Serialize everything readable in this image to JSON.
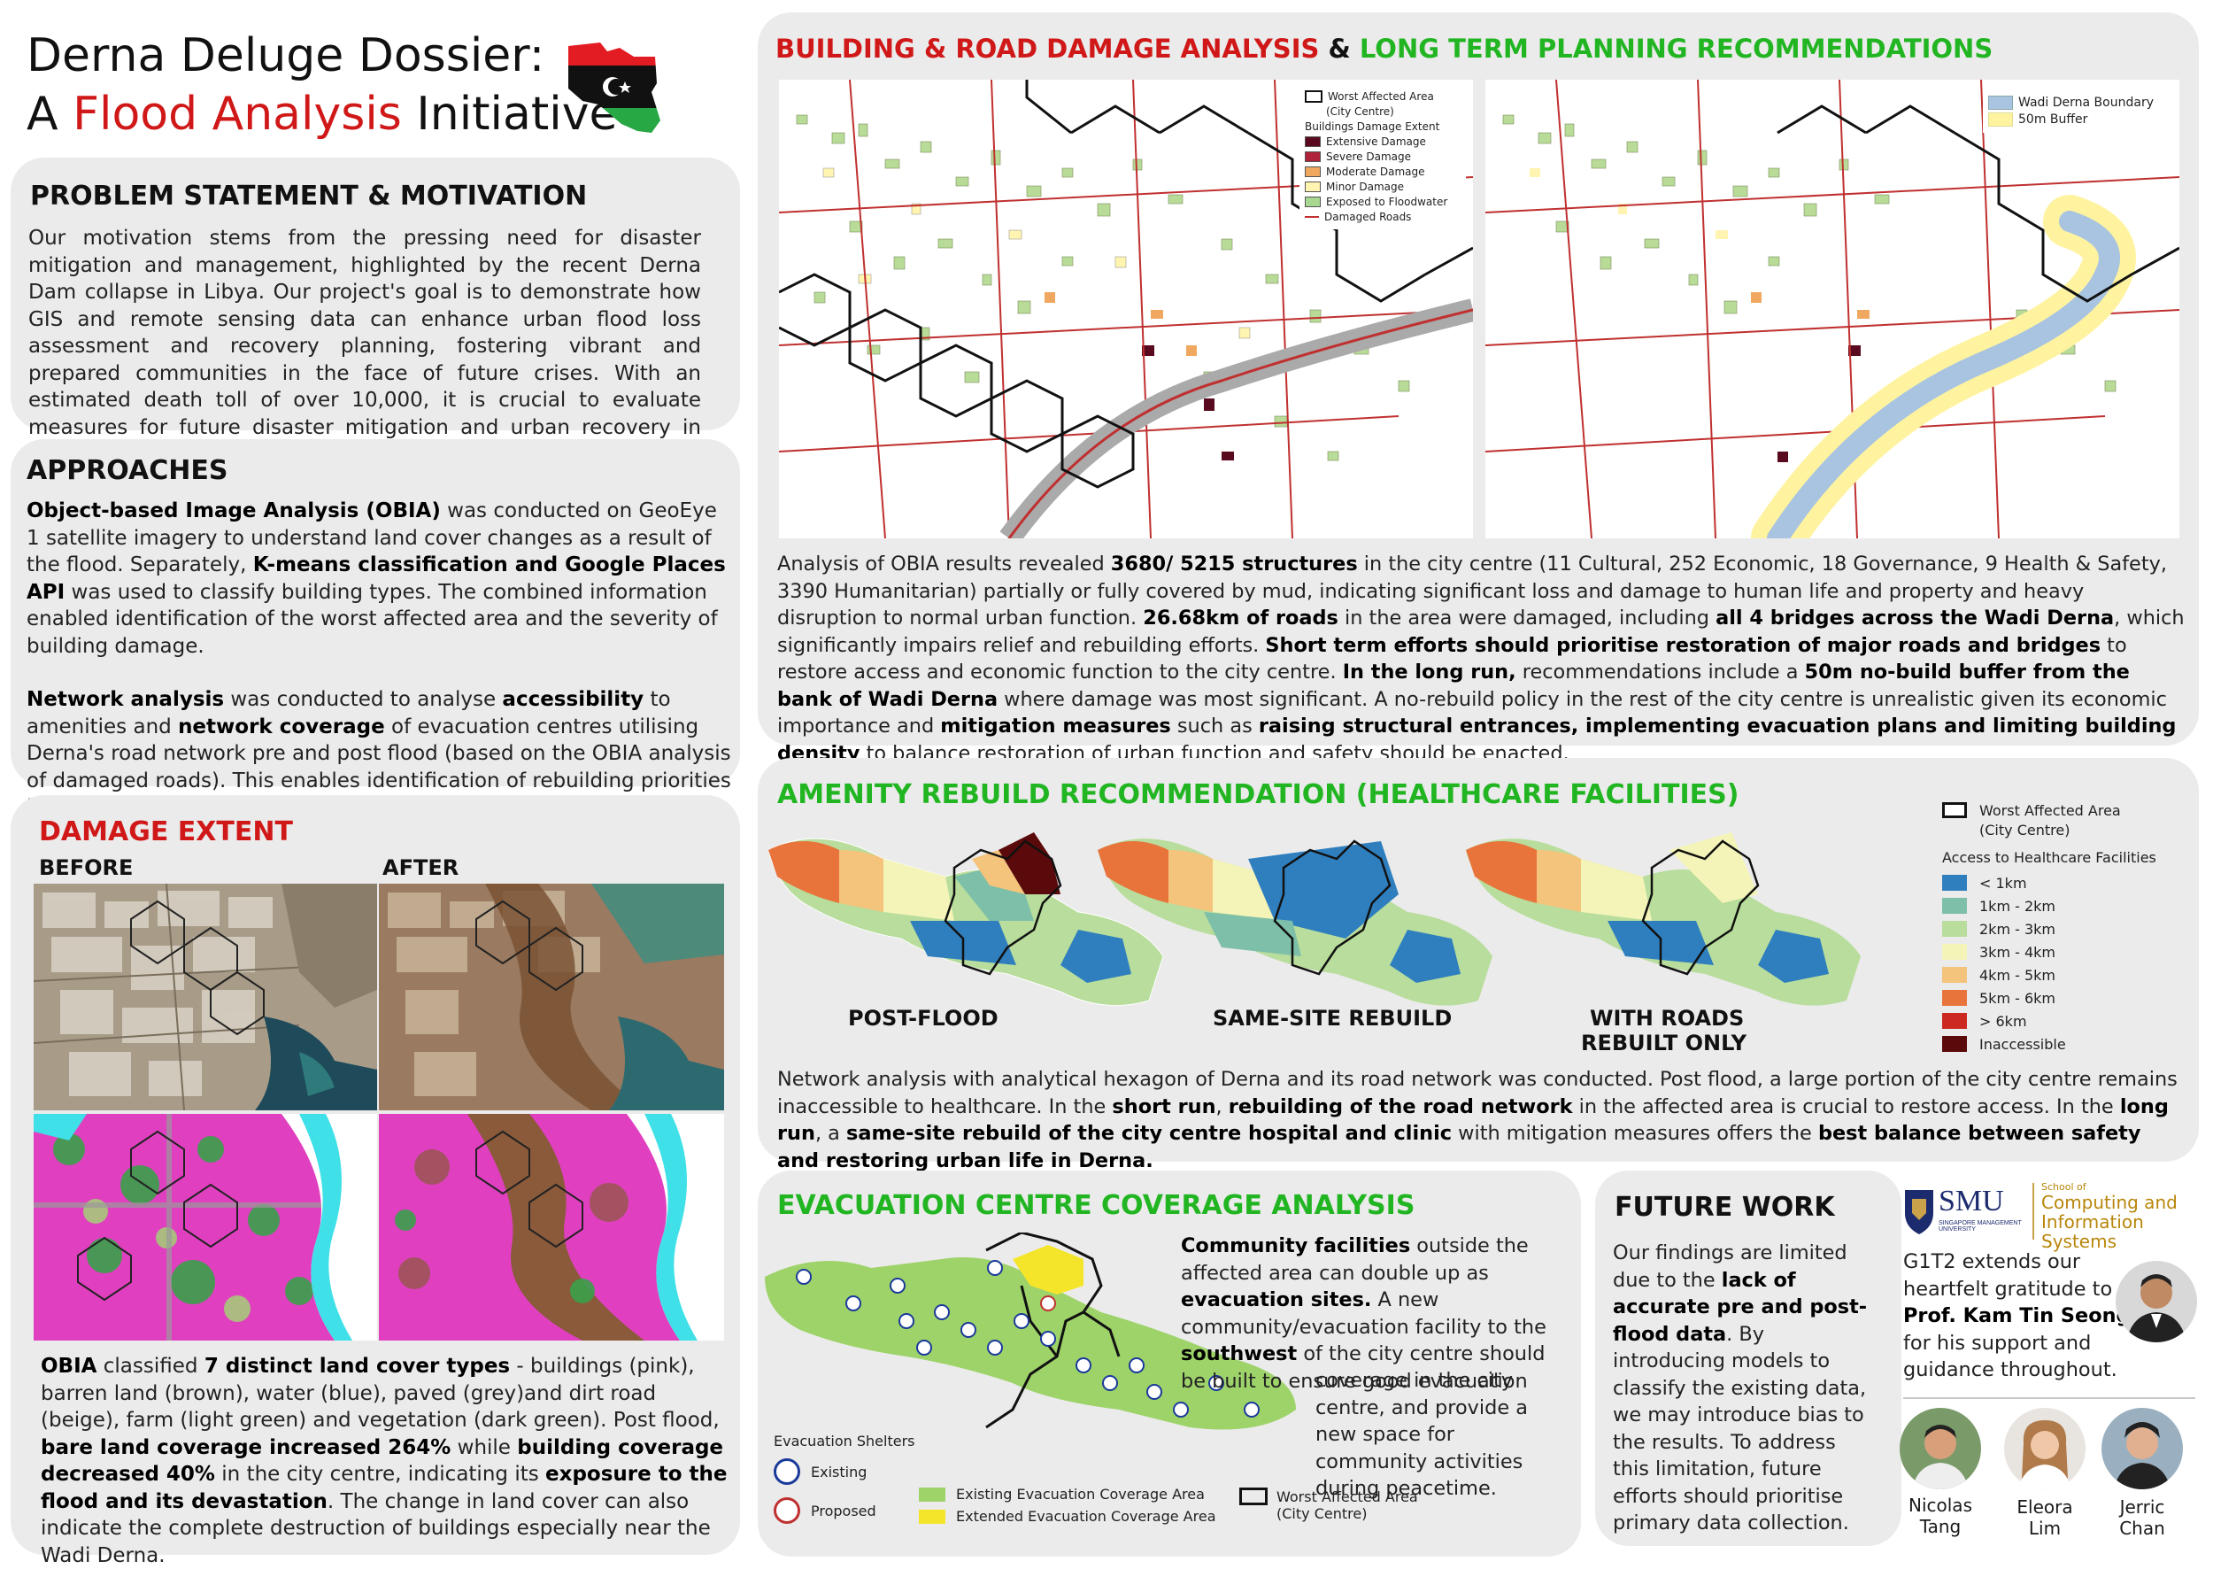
{
  "title": {
    "line1": "Derna Deluge Dossier:",
    "line2_a": "A ",
    "line2_b": "Flood Analysis",
    "line2_c": " Initiative",
    "accent": "#d01818"
  },
  "problem": {
    "heading": "PROBLEM STATEMENT & MOTIVATION",
    "text": "Our motivation stems from the pressing need for disaster mitigation and management, highlighted by the recent Derna Dam collapse in Libya. Our project's goal is to demonstrate how GIS and remote sensing data can enhance urban flood loss assessment and recovery planning, fostering vibrant and prepared communities in the face of future crises. With an estimated death toll of over 10,000, it is crucial to evaluate measures for future disaster mitigation and urban recovery in Libya."
  },
  "approaches": {
    "heading": "APPROACHES",
    "p1_b1": "Object-based Image Analysis (OBIA)",
    "p1_t1": " was conducted on GeoEye 1 satellite imagery to understand land cover changes as a result of the flood. Separately, ",
    "p1_b2": "K-means classification and Google Places API",
    "p1_t2": " was used to classify building types. The combined information enabled identification of the worst affected area and the severity of building damage.",
    "p2_b1": "Network analysis",
    "p2_t1": " was conducted to analyse ",
    "p2_b2": "accessibility",
    "p2_t2": " to amenities and ",
    "p2_b3": "network coverage",
    "p2_t3": " of evacuation centres utilising Derna's road network pre and post flood (based on the OBIA analysis of damaged roads). This enables identification of rebuilding priorities in the short and long-term."
  },
  "damage": {
    "heading": "DAMAGE EXTENT",
    "before": "BEFORE",
    "after": "AFTER",
    "t1": "OBIA",
    "t2": " classified ",
    "b1": "7 distinct land cover types",
    "t3": " - buildings (pink), barren land (brown), water (blue), paved (grey)and dirt road (beige), farm (light green) and vegetation (dark green). Post flood, ",
    "b2": "bare land coverage increased 264%",
    "t4": " while ",
    "b3": "building coverage decreased 40%",
    "t5": " in the city centre, indicating its ",
    "b4": "exposure to the flood and its devastation",
    "t6": ". The change in land cover can also indicate the complete destruction of buildings especially near the Wadi Derna."
  },
  "building": {
    "heading_red": "BUILDING & ROAD DAMAGE ANALYSIS",
    "heading_amp": " & ",
    "heading_green": "LONG TERM PLANNING RECOMMENDATIONS",
    "legend_left": {
      "worst": "Worst Affected Area",
      "worst2": "(City Centre)",
      "title": "Buildings Damage Extent",
      "items": [
        "Extensive Damage",
        "Severe Damage",
        "Moderate Damage",
        "Minor Damage",
        "Exposed to Floodwater",
        "Damaged Roads"
      ],
      "colors": [
        "#5a0a1e",
        "#b0223a",
        "#f0a860",
        "#fff4b0",
        "#a8d890",
        "#c03030"
      ]
    },
    "legend_right": {
      "items": [
        "Wadi Derna Boundary",
        "50m Buffer"
      ],
      "colors": [
        "#a8c4e0",
        "#fff3a0"
      ]
    },
    "p_t1": "Analysis of OBIA results revealed ",
    "p_b1": "3680/ 5215 structures",
    "p_t2": " in the city centre (11 Cultural, 252 Economic, 18 Governance, 9 Health & Safety, 3390 Humanitarian) partially or fully covered by mud, indicating significant loss and damage to human life and property and heavy disruption to normal urban function. ",
    "p_b2": "26.68km of roads",
    "p_t3": " in the area were damaged, including ",
    "p_b3": "all 4 bridges across the Wadi Derna",
    "p_t4": ", which significantly impairs relief and rebuilding efforts. ",
    "p_b4": "Short term efforts should prioritise restoration of major roads and bridges",
    "p_t5": " to restore access and economic function to the city centre. ",
    "p_b5": "In the long run,",
    "p_t6": " recommendations include a ",
    "p_b6": "50m no-build buffer from the bank of Wadi Derna",
    "p_t7": " where damage was most significant. A no-rebuild policy in the rest of the city centre is unrealistic given its economic importance and ",
    "p_b7": "mitigation measures",
    "p_t8": " such as ",
    "p_b8": "raising structural entrances, implementing evacuation plans and limiting building density",
    "p_t9": " to balance restoration of urban function and safety should be enacted."
  },
  "amenity": {
    "heading": "AMENITY REBUILD RECOMMENDATION (HEALTHCARE FACILITIES)",
    "labels": [
      "POST-FLOOD",
      "SAME-SITE REBUILD",
      "WITH ROADS",
      "REBUILT ONLY"
    ],
    "legend_worst": "Worst Affected Area",
    "legend_worst2": "(City Centre)",
    "legend_title": "Access to Healthcare Facilities",
    "legend_items": [
      "< 1km",
      "1km - 2km",
      "2km - 3km",
      "3km - 4km",
      "4km - 5km",
      "5km - 6km",
      "> 6km",
      "Inaccessible"
    ],
    "legend_colors": [
      "#2f7fbf",
      "#7dbfa8",
      "#b8dd9c",
      "#f4f4b8",
      "#f4c37c",
      "#e8743c",
      "#cc2a20",
      "#5a0a0a"
    ],
    "p_t1": "Network analysis with analytical hexagon of Derna and its road network was conducted. Post flood, a large portion of the city centre remains inaccessible to healthcare. In the ",
    "p_b1": "short run",
    "p_t2": ", ",
    "p_b2": "rebuilding of the road network",
    "p_t3": " in the affected area is crucial to restore access. In the ",
    "p_b3": "long run",
    "p_t4": ", a ",
    "p_b4": "same-site rebuild of the city centre hospital and clinic",
    "p_t5": " with mitigation measures offers the ",
    "p_b5": "best balance between safety and restoring urban life in Derna."
  },
  "evac": {
    "heading": "EVACUATION CENTRE COVERAGE ANALYSIS",
    "legend_title": "Evacuation Shelters",
    "existing": "Existing",
    "proposed": "Proposed",
    "cov_existing": "Existing Evacuation Coverage Area",
    "cov_extended": "Extended Evacuation Coverage Area",
    "worst": "Worst Affected Area",
    "worst2": "(City Centre)",
    "t_b1": "Community facilities",
    "t_1": " outside the affected area can double up as ",
    "t_b2": "evacuation sites.",
    "t_2": " A new community/evacuation facility to the ",
    "t_b3": "southwest",
    "t_3": " of the city centre should be built to ensure good evacuation",
    "t_4": "coverage in the city centre, and provide a new space for community activities during peacetime."
  },
  "future": {
    "heading": "FUTURE WORK",
    "t1": "Our findings are limited due to the ",
    "b1": "lack of accurate pre and post-flood data",
    "t2": ". By introducing models to classify the existing data, we may introduce bias to the results. To address this limitation, future efforts should prioritise primary data collection."
  },
  "credits": {
    "smu": "SMU",
    "smu_sub": "SINGAPORE MANAGEMENT UNIVERSITY",
    "school_a": "School of",
    "school_b": "Computing and",
    "school_c": "Information Systems",
    "thanks_1": "G1T2 extends our heartfelt gratitude to ",
    "prof": "Prof. Kam Tin Seong",
    "thanks_2": " for his support and guidance throughout.",
    "members": [
      {
        "first": "Nicolas",
        "last": "Tang"
      },
      {
        "first": "Eleora",
        "last": "Lim"
      },
      {
        "first": "Jerric",
        "last": "Chan"
      }
    ]
  }
}
